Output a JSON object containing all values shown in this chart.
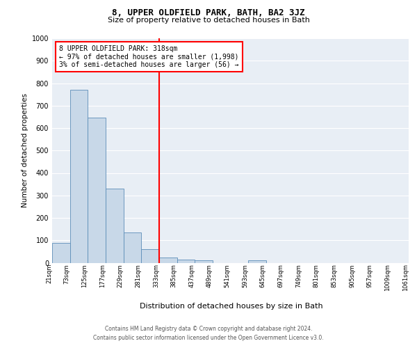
{
  "title": "8, UPPER OLDFIELD PARK, BATH, BA2 3JZ",
  "subtitle": "Size of property relative to detached houses in Bath",
  "xlabel": "Distribution of detached houses by size in Bath",
  "ylabel": "Number of detached properties",
  "bar_values": [
    88,
    770,
    645,
    330,
    135,
    62,
    22,
    15,
    10,
    0,
    0,
    10,
    0,
    0,
    0,
    0,
    0,
    0,
    0,
    0
  ],
  "bin_labels": [
    "21sqm",
    "73sqm",
    "125sqm",
    "177sqm",
    "229sqm",
    "281sqm",
    "333sqm",
    "385sqm",
    "437sqm",
    "489sqm",
    "541sqm",
    "593sqm",
    "645sqm",
    "697sqm",
    "749sqm",
    "801sqm",
    "853sqm",
    "905sqm",
    "957sqm",
    "1009sqm",
    "1061sqm"
  ],
  "bar_color": "#c8d8e8",
  "bar_edge_color": "#5b8db8",
  "vline_x_index": 6,
  "vline_color": "red",
  "annotation_box_text": "8 UPPER OLDFIELD PARK: 318sqm\n← 97% of detached houses are smaller (1,998)\n3% of semi-detached houses are larger (56) →",
  "ylim": [
    0,
    1000
  ],
  "yticks": [
    0,
    100,
    200,
    300,
    400,
    500,
    600,
    700,
    800,
    900,
    1000
  ],
  "background_color": "#e8eef5",
  "grid_color": "#ffffff",
  "footer_line1": "Contains HM Land Registry data © Crown copyright and database right 2024.",
  "footer_line2": "Contains public sector information licensed under the Open Government Licence v3.0."
}
